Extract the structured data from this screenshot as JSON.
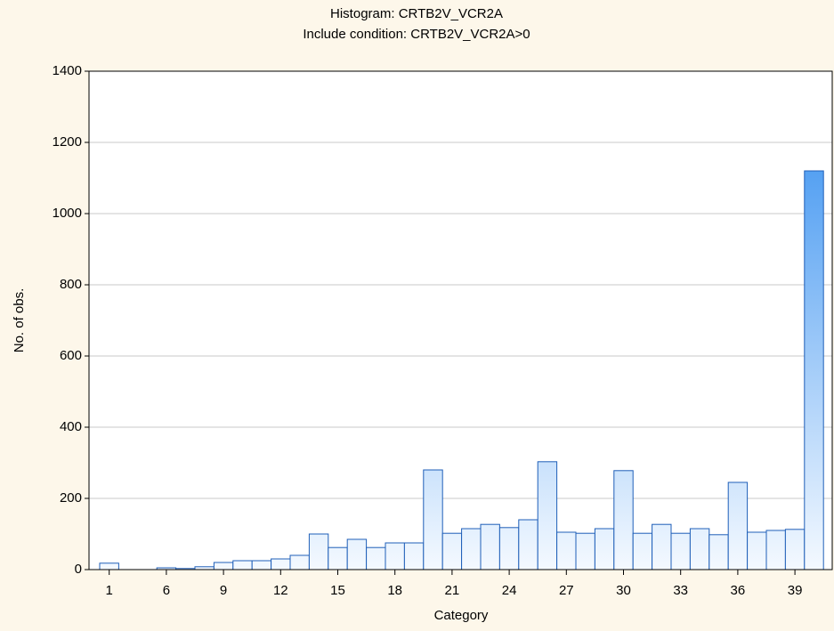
{
  "chart_data": {
    "type": "bar",
    "title": "Histogram: CRTB2V_VCR2A",
    "subtitle": "Include condition: CRTB2V_VCR2A>0",
    "x_label": "Category",
    "y_label": "No. of obs.",
    "categories": [
      "1",
      null,
      null,
      "6",
      null,
      null,
      "9",
      null,
      null,
      "12",
      null,
      null,
      "15",
      null,
      null,
      "18",
      null,
      null,
      "21",
      null,
      null,
      "24",
      null,
      null,
      "27",
      null,
      null,
      "30",
      null,
      null,
      "33",
      null,
      null,
      "36",
      null,
      null,
      "39",
      null
    ],
    "values": [
      18,
      0,
      0,
      5,
      3,
      8,
      20,
      25,
      25,
      30,
      40,
      100,
      62,
      85,
      62,
      75,
      75,
      280,
      102,
      115,
      127,
      118,
      140,
      303,
      105,
      102,
      115,
      278,
      102,
      127,
      102,
      115,
      98,
      245,
      105,
      110,
      113,
      1120
    ],
    "color": "#2e8bef",
    "ylim": [
      0,
      1400
    ],
    "yticks": [
      0,
      200,
      400,
      600,
      800,
      1000,
      1200,
      1400
    ],
    "grid": true
  }
}
